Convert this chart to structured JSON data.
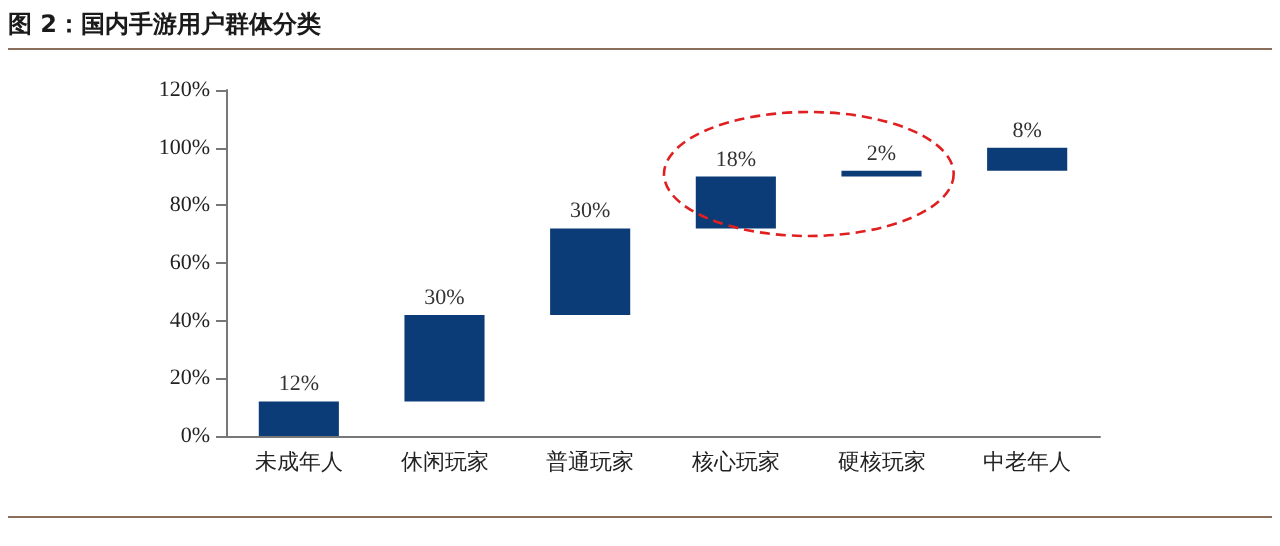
{
  "chart_data": {
    "type": "bar",
    "title": "图 2：国内手游用户群体分类",
    "categories": [
      "未成年人",
      "休闲玩家",
      "普通玩家",
      "核心玩家",
      "硬核玩家",
      "中老年人"
    ],
    "values": [
      12,
      30,
      30,
      18,
      2,
      8
    ],
    "base": [
      0,
      12,
      42,
      72,
      90,
      92
    ],
    "value_labels": [
      "12%",
      "30%",
      "30%",
      "18%",
      "2%",
      "8%"
    ],
    "color": "#0b3c78",
    "ylim": [
      0,
      120
    ],
    "yticks": [
      {
        "value": 0,
        "label": "0%"
      },
      {
        "value": 20,
        "label": "20%"
      },
      {
        "value": 40,
        "label": "40%"
      },
      {
        "value": 60,
        "label": "60%"
      },
      {
        "value": 80,
        "label": "80%"
      },
      {
        "value": 100,
        "label": "100%"
      },
      {
        "value": 120,
        "label": "120%"
      }
    ],
    "grid": false
  }
}
